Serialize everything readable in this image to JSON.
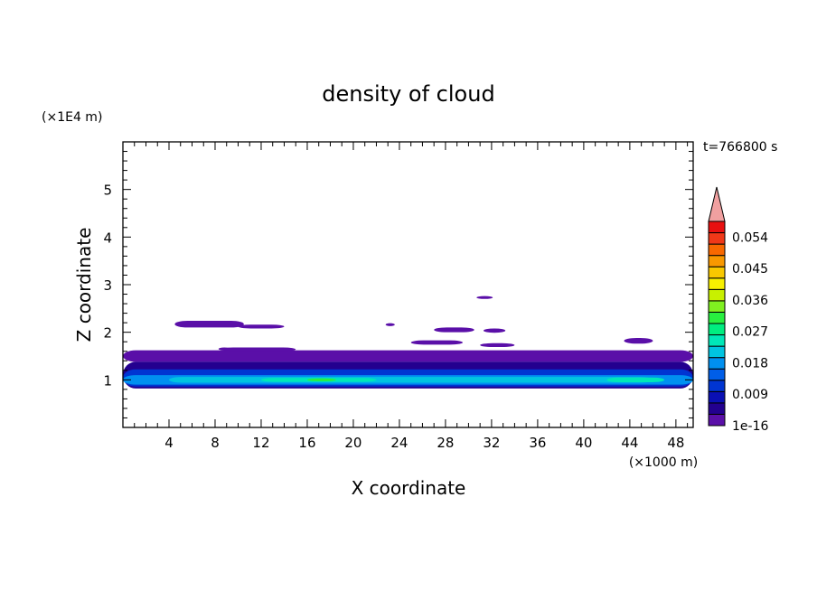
{
  "chart_data": {
    "type": "heatmap",
    "title": "density of cloud",
    "xlabel": "X coordinate",
    "ylabel": "Z coordinate",
    "x_unit": "(×1000 m)",
    "y_unit": "(×1E4 m)",
    "time_label": "t=766800 s",
    "xlim": [
      0,
      49.5
    ],
    "ylim": [
      0,
      6
    ],
    "x_ticks": [
      4,
      8,
      12,
      16,
      20,
      24,
      28,
      32,
      36,
      40,
      44,
      48
    ],
    "y_ticks": [
      1,
      2,
      3,
      4,
      5
    ],
    "colorbar": {
      "labels": [
        "1e-16",
        "0.009",
        "0.018",
        "0.027",
        "0.036",
        "0.045",
        "0.054"
      ],
      "label_values": [
        0,
        0.009,
        0.018,
        0.027,
        0.036,
        0.045,
        0.054
      ],
      "min": 0,
      "max": 0.0585,
      "colors": [
        "#5a0fa8",
        "#23008f",
        "#0a10b4",
        "#0035d2",
        "#005ee8",
        "#0090f0",
        "#00c4e0",
        "#00e8b8",
        "#00ee80",
        "#28f040",
        "#80f020",
        "#c8f000",
        "#f8f000",
        "#f8c800",
        "#f89800",
        "#f86800",
        "#f03818",
        "#e81010"
      ],
      "overflow_color": "#f0a0a0"
    },
    "blobs": [
      {
        "x1": 0,
        "x2": 49.5,
        "y1": 1.38,
        "y2": 1.62,
        "level": 0
      },
      {
        "x1": 0,
        "x2": 49.5,
        "y1": 0.82,
        "y2": 1.38,
        "level": 1
      },
      {
        "x1": 0,
        "x2": 49.5,
        "y1": 0.86,
        "y2": 1.22,
        "level": 3
      },
      {
        "x1": 0,
        "x2": 49.5,
        "y1": 0.9,
        "y2": 1.1,
        "level": 5
      },
      {
        "x1": 4,
        "x2": 46,
        "y1": 0.94,
        "y2": 1.06,
        "level": 6
      },
      {
        "x1": 12,
        "x2": 22,
        "y1": 0.96,
        "y2": 1.04,
        "level": 7
      },
      {
        "x1": 16,
        "x2": 18.5,
        "y1": 0.97,
        "y2": 1.03,
        "level": 9
      },
      {
        "x1": 42,
        "x2": 47,
        "y1": 0.95,
        "y2": 1.05,
        "level": 7
      },
      {
        "x1": 4.5,
        "x2": 10.5,
        "y1": 2.1,
        "y2": 2.24,
        "level": 0
      },
      {
        "x1": 10,
        "x2": 14,
        "y1": 2.08,
        "y2": 2.16,
        "level": 0
      },
      {
        "x1": 8.5,
        "x2": 15,
        "y1": 1.6,
        "y2": 1.68,
        "level": 0
      },
      {
        "x1": 22.8,
        "x2": 23.6,
        "y1": 2.13,
        "y2": 2.19,
        "level": 0
      },
      {
        "x1": 27,
        "x2": 30.5,
        "y1": 2.0,
        "y2": 2.1,
        "level": 0
      },
      {
        "x1": 31.3,
        "x2": 33.2,
        "y1": 1.99,
        "y2": 2.08,
        "level": 0
      },
      {
        "x1": 30.7,
        "x2": 32.1,
        "y1": 2.7,
        "y2": 2.76,
        "level": 0
      },
      {
        "x1": 25,
        "x2": 29.5,
        "y1": 1.74,
        "y2": 1.83,
        "level": 0
      },
      {
        "x1": 31,
        "x2": 34,
        "y1": 1.69,
        "y2": 1.77,
        "level": 0
      },
      {
        "x1": 43.5,
        "x2": 46,
        "y1": 1.76,
        "y2": 1.88,
        "level": 0
      },
      {
        "x1": 8.3,
        "x2": 9.3,
        "y1": 1.62,
        "y2": 1.68,
        "level": 0
      }
    ]
  }
}
